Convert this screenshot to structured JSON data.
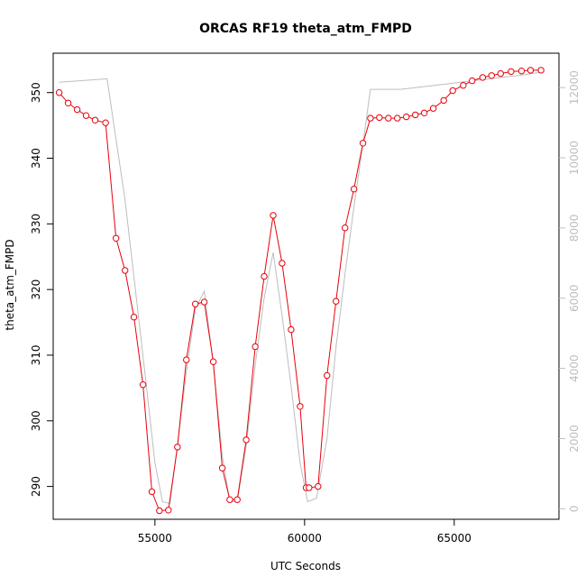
{
  "chart_data": {
    "type": "line",
    "title": "ORCAS RF19 theta_atm_FMPD",
    "xlabel": "UTC Seconds",
    "ylabel": "theta_atm_FMPD",
    "xlim": [
      51600,
      68500
    ],
    "ylim": [
      285.0,
      356.0
    ],
    "y2lim": [
      -300,
      12980
    ],
    "xticks": [
      55000,
      60000,
      65000
    ],
    "yticks": [
      290,
      300,
      310,
      320,
      330,
      340,
      350
    ],
    "y2ticks": [
      0,
      2000,
      4000,
      6000,
      8000,
      10000,
      12000
    ],
    "grid": false,
    "series": [
      {
        "role": "primary",
        "color": "#e8000b",
        "marker": "open-circle",
        "x": [
          51800,
          52100,
          52400,
          52700,
          53000,
          53350,
          53700,
          54000,
          54300,
          54600,
          54900,
          55150,
          55450,
          55750,
          56050,
          56350,
          56650,
          56950,
          57250,
          57500,
          57750,
          58050,
          58350,
          58650,
          58950,
          59250,
          59550,
          59850,
          60050,
          60150,
          60450,
          60750,
          61050,
          61350,
          61650,
          61950,
          62200,
          62500,
          62800,
          63100,
          63400,
          63700,
          64000,
          64300,
          64650,
          64950,
          65300,
          65600,
          65950,
          66250,
          66550,
          66900,
          67250,
          67550,
          67900
        ],
        "y": [
          350.0,
          348.4,
          347.4,
          346.5,
          345.8,
          345.4,
          327.8,
          322.9,
          315.8,
          305.5,
          289.2,
          286.3,
          286.4,
          296.0,
          309.3,
          317.8,
          318.1,
          309.0,
          292.8,
          288.0,
          288.0,
          297.1,
          311.3,
          322.0,
          331.3,
          324.0,
          313.9,
          302.2,
          289.8,
          289.8,
          290.0,
          306.9,
          318.2,
          329.4,
          335.3,
          342.3,
          346.1,
          346.2,
          346.1,
          346.1,
          346.3,
          346.6,
          346.9,
          347.6,
          348.8,
          350.3,
          351.1,
          351.8,
          352.3,
          352.6,
          352.9,
          353.2,
          353.3,
          353.4,
          353.4
        ]
      },
      {
        "role": "secondary",
        "axis": "right",
        "color": "#bdbdbd",
        "x": [
          51800,
          53400,
          53650,
          54000,
          54300,
          54650,
          55000,
          55250,
          55500,
          55750,
          56050,
          56350,
          56650,
          56950,
          57250,
          57500,
          57750,
          58050,
          58350,
          58650,
          58950,
          59250,
          59550,
          59850,
          60100,
          60400,
          60750,
          61050,
          61350,
          61650,
          61950,
          62200,
          63200,
          64200,
          65200,
          66200,
          67200,
          68000
        ],
        "y": [
          12150,
          12250,
          10800,
          8800,
          6600,
          4000,
          1300,
          200,
          150,
          1800,
          3900,
          5700,
          6200,
          4100,
          1500,
          200,
          200,
          1800,
          4100,
          6000,
          7300,
          5500,
          3500,
          1300,
          200,
          300,
          2000,
          4600,
          6700,
          8600,
          10400,
          11950,
          11950,
          12050,
          12150,
          12250,
          12350,
          12450
        ]
      }
    ]
  }
}
